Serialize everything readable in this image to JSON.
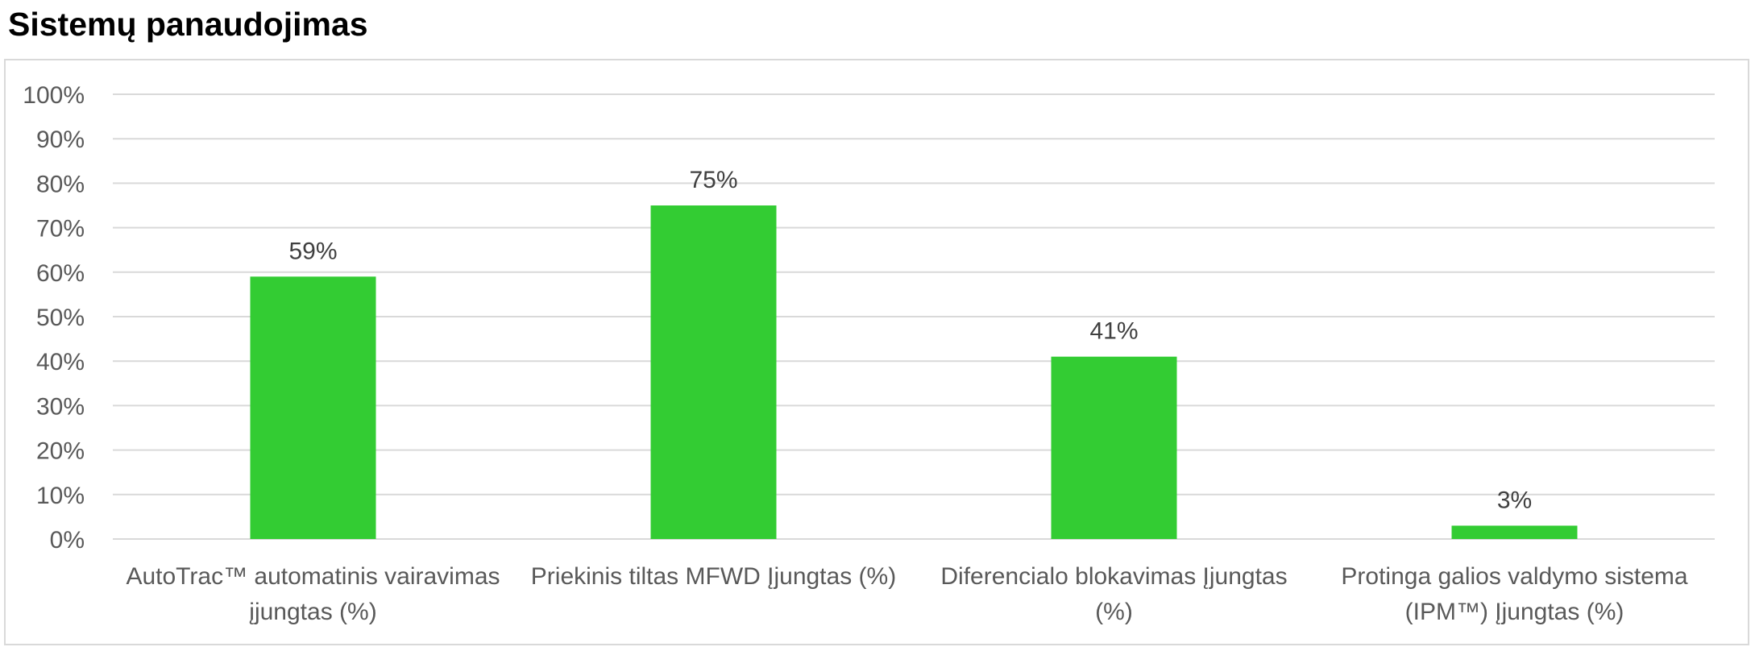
{
  "title": "Sistemų panaudojimas",
  "chart_data": {
    "type": "bar",
    "title": "",
    "xlabel": "",
    "ylabel": "",
    "ylim": [
      0,
      100
    ],
    "y_ticks": [
      "0%",
      "10%",
      "20%",
      "30%",
      "40%",
      "50%",
      "60%",
      "70%",
      "80%",
      "90%",
      "100%"
    ],
    "categories": [
      [
        "AutoTrac™ automatinis vairavimas",
        "įjungtas (%)"
      ],
      [
        "Priekinis tiltas MFWD Įjungtas (%)"
      ],
      [
        "Diferencialo blokavimas Įjungtas",
        "(%)"
      ],
      [
        "Protinga galios valdymo sistema",
        "(IPM™) Įjungtas (%)"
      ]
    ],
    "values": [
      59,
      75,
      41,
      3
    ],
    "data_labels": [
      "59%",
      "75%",
      "41%",
      "3%"
    ],
    "bar_color": "#33cc33",
    "grid": true,
    "legend": "none"
  }
}
